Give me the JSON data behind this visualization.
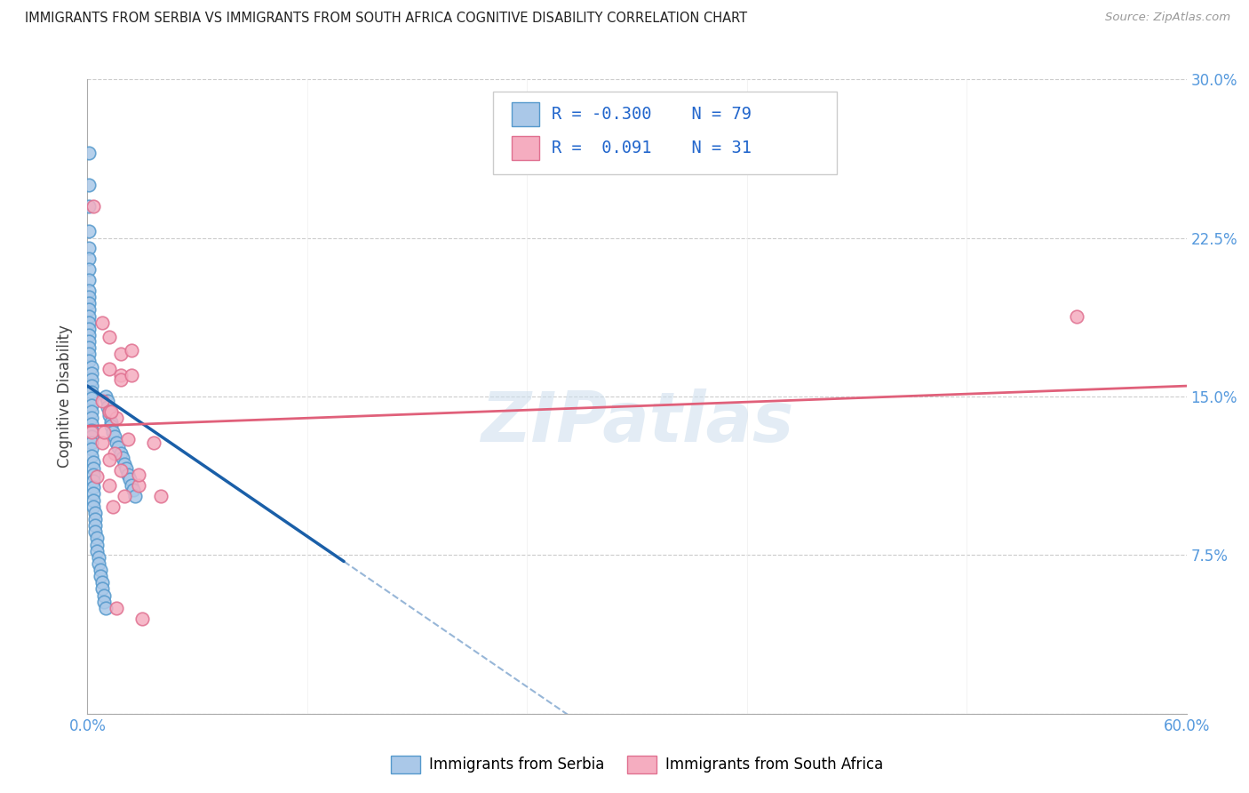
{
  "title": "IMMIGRANTS FROM SERBIA VS IMMIGRANTS FROM SOUTH AFRICA COGNITIVE DISABILITY CORRELATION CHART",
  "source": "Source: ZipAtlas.com",
  "ylabel": "Cognitive Disability",
  "xlim": [
    0.0,
    0.6
  ],
  "ylim": [
    0.0,
    0.3
  ],
  "xticks": [
    0.0,
    0.12,
    0.24,
    0.36,
    0.48,
    0.6
  ],
  "yticks": [
    0.0,
    0.075,
    0.15,
    0.225,
    0.3
  ],
  "ytick_labels_right": [
    "",
    "7.5%",
    "15.0%",
    "22.5%",
    "30.0%"
  ],
  "xtick_label_left": "0.0%",
  "xtick_label_right": "60.0%",
  "serbia_color": "#aac8e8",
  "serbia_edge": "#5599cc",
  "south_africa_color": "#f5adc0",
  "south_africa_edge": "#e07090",
  "serbia_R": -0.3,
  "serbia_N": 79,
  "south_africa_R": 0.091,
  "south_africa_N": 31,
  "trend_blue_color": "#1a5fa8",
  "trend_pink_color": "#e0607a",
  "watermark": "ZIPatlas",
  "legend_label_1": "Immigrants from Serbia",
  "legend_label_2": "Immigrants from South Africa",
  "tick_color": "#5599dd",
  "serbia_x": [
    0.001,
    0.001,
    0.001,
    0.001,
    0.001,
    0.001,
    0.001,
    0.001,
    0.001,
    0.001,
    0.001,
    0.001,
    0.001,
    0.001,
    0.001,
    0.001,
    0.001,
    0.001,
    0.001,
    0.001,
    0.002,
    0.002,
    0.002,
    0.002,
    0.002,
    0.002,
    0.002,
    0.002,
    0.002,
    0.002,
    0.002,
    0.002,
    0.002,
    0.002,
    0.002,
    0.003,
    0.003,
    0.003,
    0.003,
    0.003,
    0.003,
    0.003,
    0.003,
    0.004,
    0.004,
    0.004,
    0.004,
    0.005,
    0.005,
    0.005,
    0.006,
    0.006,
    0.007,
    0.007,
    0.008,
    0.008,
    0.009,
    0.009,
    0.01,
    0.01,
    0.011,
    0.011,
    0.012,
    0.012,
    0.013,
    0.013,
    0.014,
    0.015,
    0.016,
    0.017,
    0.018,
    0.019,
    0.02,
    0.021,
    0.022,
    0.023,
    0.024,
    0.025,
    0.026
  ],
  "serbia_y": [
    0.265,
    0.25,
    0.24,
    0.228,
    0.22,
    0.215,
    0.21,
    0.205,
    0.2,
    0.197,
    0.194,
    0.191,
    0.188,
    0.185,
    0.182,
    0.179,
    0.176,
    0.173,
    0.17,
    0.167,
    0.164,
    0.161,
    0.158,
    0.155,
    0.152,
    0.149,
    0.146,
    0.143,
    0.14,
    0.137,
    0.134,
    0.131,
    0.128,
    0.125,
    0.122,
    0.119,
    0.116,
    0.113,
    0.11,
    0.107,
    0.104,
    0.101,
    0.098,
    0.095,
    0.092,
    0.089,
    0.086,
    0.083,
    0.08,
    0.077,
    0.074,
    0.071,
    0.068,
    0.065,
    0.062,
    0.059,
    0.056,
    0.053,
    0.05,
    0.15,
    0.148,
    0.145,
    0.143,
    0.141,
    0.138,
    0.136,
    0.133,
    0.131,
    0.128,
    0.126,
    0.123,
    0.121,
    0.118,
    0.116,
    0.113,
    0.111,
    0.108,
    0.106,
    0.103
  ],
  "south_africa_x": [
    0.003,
    0.008,
    0.012,
    0.018,
    0.012,
    0.018,
    0.024,
    0.008,
    0.012,
    0.016,
    0.002,
    0.008,
    0.015,
    0.012,
    0.018,
    0.005,
    0.012,
    0.02,
    0.009,
    0.013,
    0.028,
    0.036,
    0.022,
    0.028,
    0.04,
    0.018,
    0.024,
    0.54,
    0.014,
    0.016,
    0.03
  ],
  "south_africa_y": [
    0.24,
    0.185,
    0.178,
    0.17,
    0.163,
    0.16,
    0.172,
    0.148,
    0.143,
    0.14,
    0.133,
    0.128,
    0.123,
    0.12,
    0.115,
    0.112,
    0.108,
    0.103,
    0.133,
    0.143,
    0.108,
    0.128,
    0.13,
    0.113,
    0.103,
    0.158,
    0.16,
    0.188,
    0.098,
    0.05,
    0.045
  ],
  "trend_blue_x_start": 0.0,
  "trend_blue_y_start": 0.155,
  "trend_blue_x_end": 0.14,
  "trend_blue_y_end": 0.072,
  "trend_blue_dash_x_end": 0.28,
  "trend_blue_dash_y_end": -0.011,
  "trend_pink_x_start": 0.0,
  "trend_pink_y_start": 0.136,
  "trend_pink_x_end": 0.6,
  "trend_pink_y_end": 0.155
}
